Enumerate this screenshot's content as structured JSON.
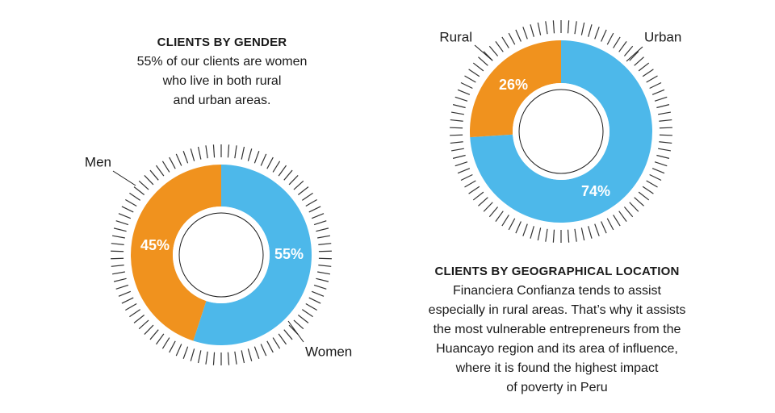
{
  "colors": {
    "orange": "#f0921e",
    "blue": "#4db8ea",
    "tick": "#333333"
  },
  "gender": {
    "title": "CLIENTS BY GENDER",
    "description": "55% of our clients are women\nwho live in both rural\nand urban areas."
  },
  "geography": {
    "title": "CLIENTS BY GEOGRAPHICAL LOCATION",
    "description": "Financiera Confianza tends to assist\nespecially in rural areas. That’s why it assists\nthe most vulnerable entrepreneurs from the\nHuancayo region and its area of influence,\nwhere it is found the highest impact\nof poverty in Peru"
  },
  "chart_data": [
    {
      "type": "pie",
      "title": "CLIENTS BY GENDER",
      "categories": [
        "Women",
        "Men"
      ],
      "values": [
        55,
        45
      ],
      "value_labels": [
        "55%",
        "45%"
      ],
      "colors": [
        "#4db8ea",
        "#f0921e"
      ]
    },
    {
      "type": "pie",
      "title": "CLIENTS BY GEOGRAPHICAL LOCATION",
      "categories": [
        "Urban",
        "Rural"
      ],
      "values": [
        74,
        26
      ],
      "value_labels": [
        "74%",
        "26%"
      ],
      "colors": [
        "#4db8ea",
        "#f0921e"
      ]
    }
  ]
}
